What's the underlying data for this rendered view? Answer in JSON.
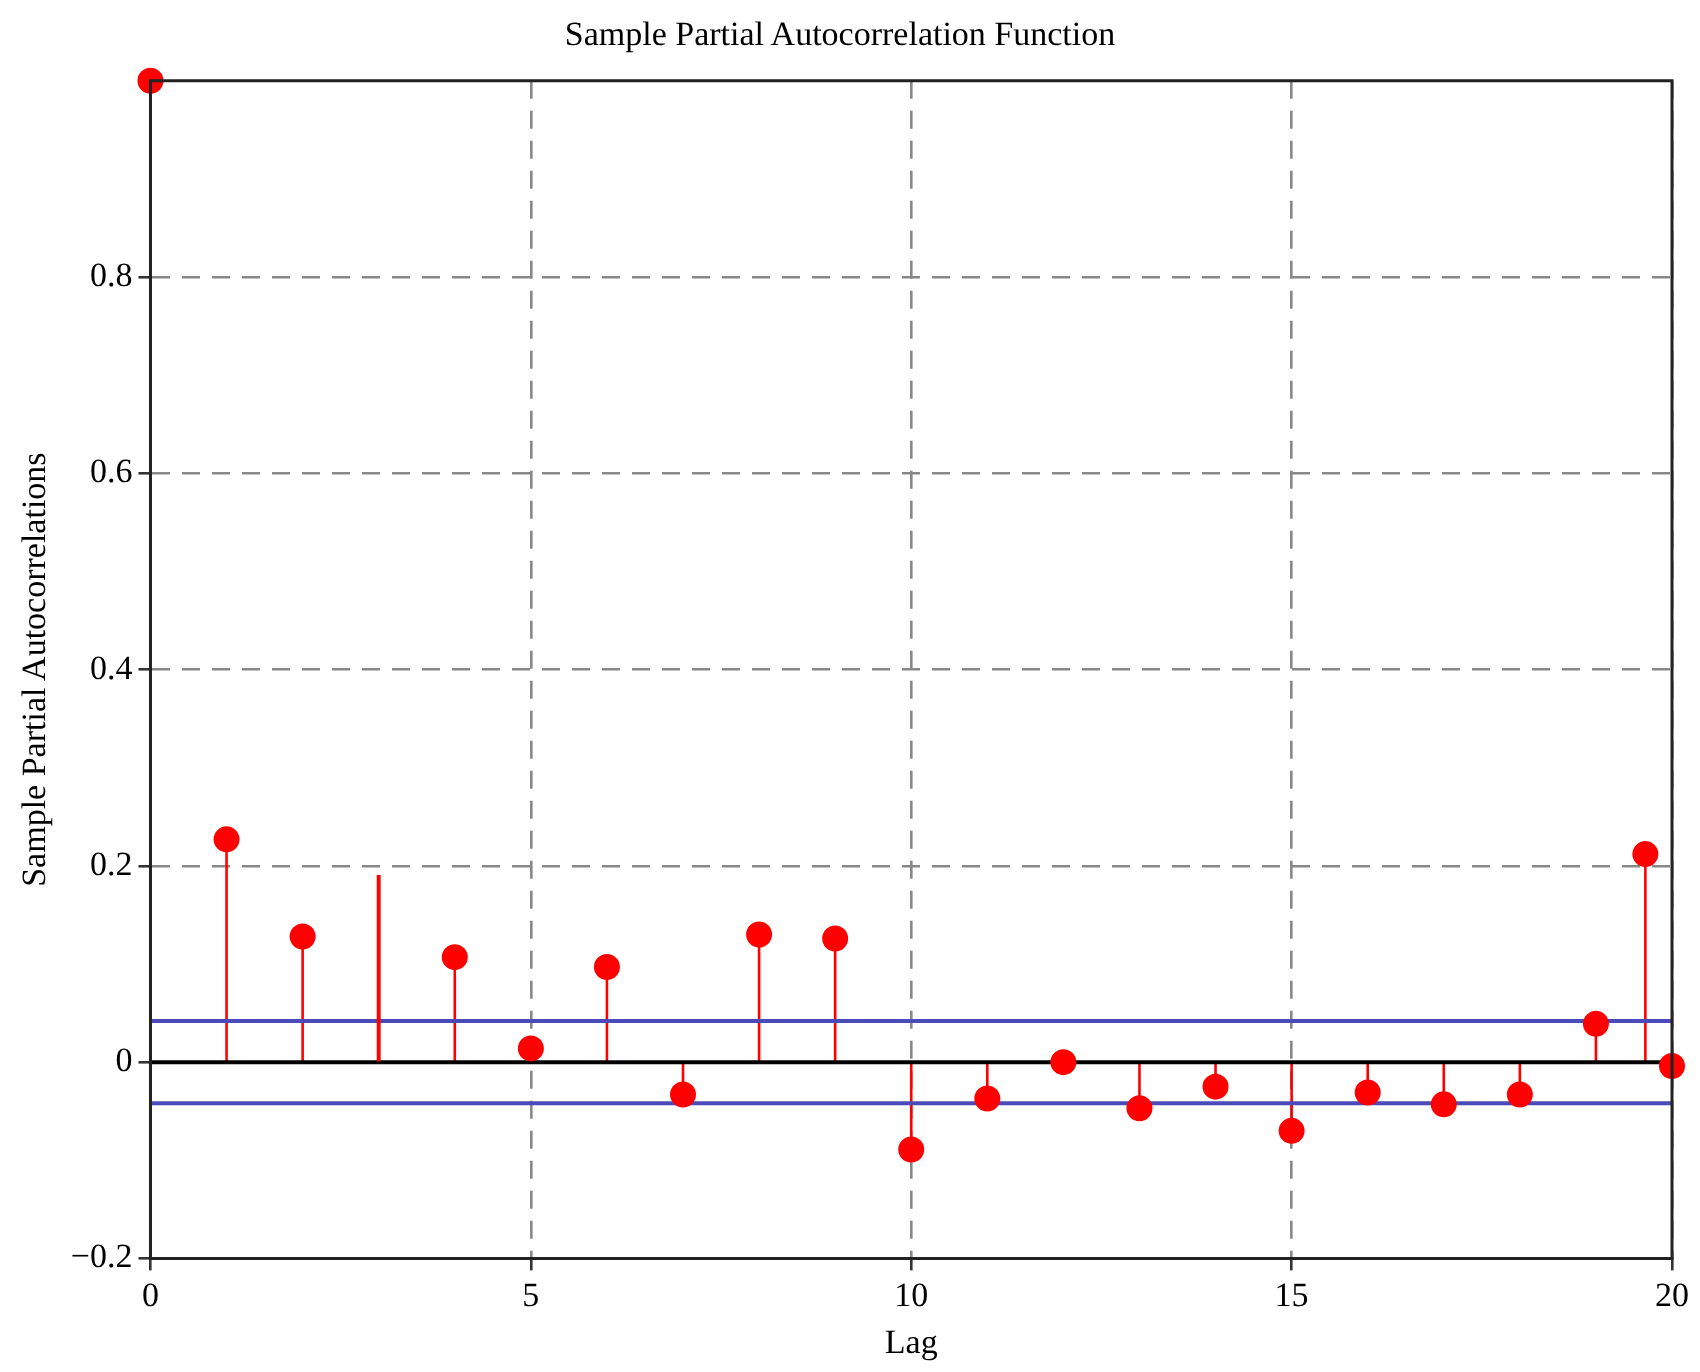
{
  "chart_data": {
    "type": "lollipop",
    "title": "Sample Partial Autocorrelation Function",
    "xlabel": "Lag",
    "ylabel": "Sample Partial Autocorrelations",
    "series": [
      {
        "color": "#ff0000",
        "marker": "circle",
        "x": [
          0,
          1,
          2,
          4,
          5,
          6,
          7,
          8,
          9,
          10,
          11,
          12,
          13,
          14,
          15,
          16,
          17,
          18,
          19,
          19.65,
          20
        ],
        "values": [
          1.0,
          0.227,
          0.128,
          0.107,
          0.014,
          0.097,
          -0.033,
          0.13,
          0.126,
          -0.089,
          -0.037,
          0.0,
          -0.047,
          -0.025,
          -0.07,
          -0.031,
          -0.043,
          -0.033,
          0.039,
          0.212,
          -0.004
        ]
      },
      {
        "type": "bar",
        "color": "#ff0000",
        "x": [
          3
        ],
        "values": [
          0.19
        ]
      }
    ],
    "xlim": [
      0,
      20
    ],
    "xticks": [
      0,
      5,
      10,
      15,
      20
    ],
    "ylim": [
      -0.2,
      1.0
    ],
    "yticks": [
      {
        "value": -0.2,
        "label": "−0.2"
      },
      0,
      0.2,
      0.4,
      0.6,
      0.8
    ],
    "ref_lines": [
      {
        "axis": "y",
        "value": 0,
        "color": "#000000",
        "line_style": "solid"
      },
      {
        "axis": "y",
        "value": 0.042,
        "color": "#4a4ab8",
        "line_style": "solid"
      },
      {
        "axis": "y",
        "value": -0.042,
        "color": "#4a4ab8",
        "line_style": "solid"
      }
    ],
    "grid": true,
    "legend": false
  }
}
